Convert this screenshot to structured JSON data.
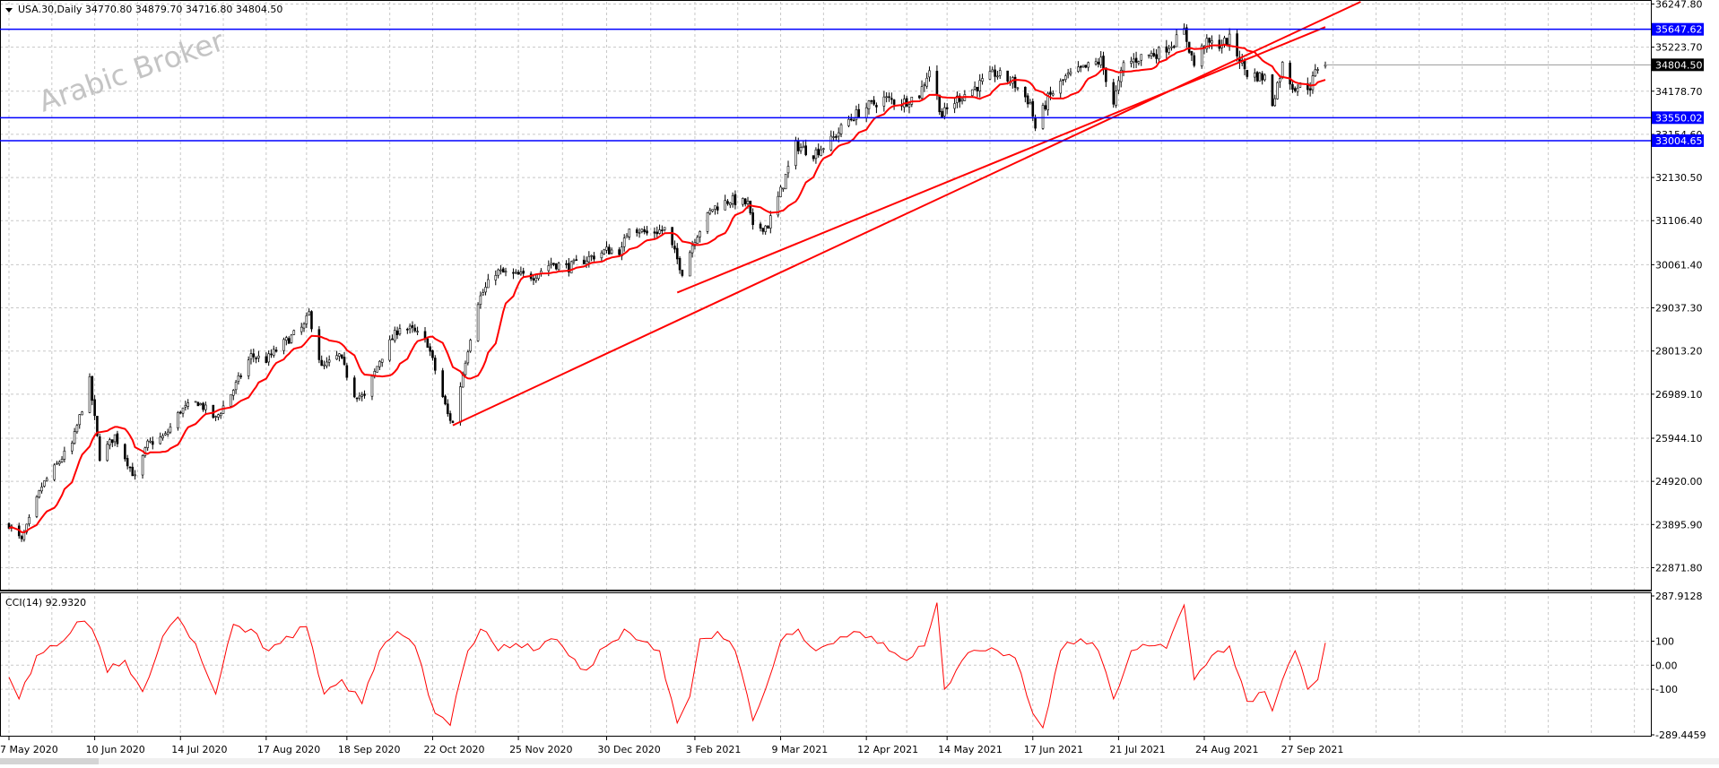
{
  "header": {
    "symbol_info": "USA.30,Daily  34770.80 34879.70 34716.80 34804.50",
    "watermark": "Arabic Broker"
  },
  "indicator": {
    "label": "CCI(14) 92.9320"
  },
  "colors": {
    "background": "#ffffff",
    "grid": "#c8c8c8",
    "candle": "#000000",
    "moving_average": "#ff0000",
    "trendline": "#ff0000",
    "horizontal_line": "#0000ff",
    "cci": "#ff0000",
    "price_tag": "#0000ff",
    "current_price_tag": "#000000"
  },
  "chart_data": [
    {
      "type": "candlestick",
      "symbol": "USA.30",
      "timeframe": "Daily",
      "ylim": [
        22350,
        36300
      ],
      "price_ticks": [
        "36247.80",
        "35223.70",
        "34178.70",
        "33154.60",
        "32130.50",
        "31106.40",
        "30061.40",
        "29037.30",
        "28013.20",
        "26989.10",
        "25944.10",
        "24920.00",
        "23895.90",
        "22871.80"
      ],
      "date_ticks": [
        "7 May 2020",
        "10 Jun 2020",
        "14 Jul 2020",
        "17 Aug 2020",
        "18 Sep 2020",
        "22 Oct 2020",
        "25 Nov 2020",
        "30 Dec 2020",
        "3 Feb 2021",
        "9 Mar 2021",
        "12 Apr 2021",
        "14 May 2021",
        "17 Jun 2021",
        "21 Jul 2021",
        "24 Aug 2021",
        "27 Sep 2021"
      ],
      "price_path": [
        [
          "7 May 2020",
          23900
        ],
        [
          "12 May 2020",
          23500
        ],
        [
          "20 May 2020",
          24800
        ],
        [
          "27 May 2020",
          25400
        ],
        [
          "1 Jun 2020",
          25800
        ],
        [
          "8 Jun 2020",
          27300
        ],
        [
          "12 Jun 2020",
          25500
        ],
        [
          "18 Jun 2020",
          26000
        ],
        [
          "26 Jun 2020",
          25000
        ],
        [
          "1 Jul 2020",
          25800
        ],
        [
          "8 Jul 2020",
          26000
        ],
        [
          "14 Jul 2020",
          26600
        ],
        [
          "21 Jul 2020",
          26800
        ],
        [
          "28 Jul 2020",
          26400
        ],
        [
          "4 Aug 2020",
          27100
        ],
        [
          "11 Aug 2020",
          27900
        ],
        [
          "17 Aug 2020",
          27800
        ],
        [
          "24 Aug 2020",
          28200
        ],
        [
          "1 Sep 2020",
          28600
        ],
        [
          "3 Sep 2020",
          28900
        ],
        [
          "8 Sep 2020",
          27600
        ],
        [
          "15 Sep 2020",
          27900
        ],
        [
          "21 Sep 2020",
          27000
        ],
        [
          "25 Sep 2020",
          26900
        ],
        [
          "1 Oct 2020",
          27800
        ],
        [
          "9 Oct 2020",
          28600
        ],
        [
          "14 Oct 2020",
          28500
        ],
        [
          "20 Oct 2020",
          28200
        ],
        [
          "28 Oct 2020",
          26500
        ],
        [
          "30 Oct 2020",
          26300
        ],
        [
          "4 Nov 2020",
          27800
        ],
        [
          "9 Nov 2020",
          29200
        ],
        [
          "16 Nov 2020",
          29900
        ],
        [
          "24 Nov 2020",
          29800
        ],
        [
          "1 Dec 2020",
          29800
        ],
        [
          "8 Dec 2020",
          30100
        ],
        [
          "15 Dec 2020",
          30000
        ],
        [
          "22 Dec 2020",
          30200
        ],
        [
          "30 Dec 2020",
          30400
        ],
        [
          "5 Jan 2021",
          30400
        ],
        [
          "8 Jan 2021",
          31000
        ],
        [
          "15 Jan 2021",
          30800
        ],
        [
          "22 Jan 2021",
          30900
        ],
        [
          "29 Jan 2021",
          29900
        ],
        [
          "3 Feb 2021",
          30700
        ],
        [
          "10 Feb 2021",
          31400
        ],
        [
          "17 Feb 2021",
          31600
        ],
        [
          "24 Feb 2021",
          31500
        ],
        [
          "26 Feb 2021",
          30900
        ],
        [
          "4 Mar 2021",
          31000
        ],
        [
          "9 Mar 2021",
          31800
        ],
        [
          "15 Mar 2021",
          32900
        ],
        [
          "22 Mar 2021",
          32700
        ],
        [
          "29 Mar 2021",
          33000
        ],
        [
          "5 Apr 2021",
          33500
        ],
        [
          "12 Apr 2021",
          33800
        ],
        [
          "19 Apr 2021",
          34000
        ],
        [
          "26 Apr 2021",
          33900
        ],
        [
          "3 May 2021",
          34100
        ],
        [
          "7 May 2021",
          34700
        ],
        [
          "12 May 2021",
          33600
        ],
        [
          "18 May 2021",
          34000
        ],
        [
          "26 May 2021",
          34300
        ],
        [
          "2 Jun 2021",
          34600
        ],
        [
          "9 Jun 2021",
          34400
        ],
        [
          "16 Jun 2021",
          33900
        ],
        [
          "18 Jun 2021",
          33300
        ],
        [
          "23 Jun 2021",
          34000
        ],
        [
          "30 Jun 2021",
          34500
        ],
        [
          "7 Jul 2021",
          34700
        ],
        [
          "14 Jul 2021",
          34900
        ],
        [
          "19 Jul 2021",
          33900
        ],
        [
          "23 Jul 2021",
          34800
        ],
        [
          "30 Jul 2021",
          35000
        ],
        [
          "6 Aug 2021",
          35100
        ],
        [
          "13 Aug 2021",
          35400
        ],
        [
          "16 Aug 2021",
          35600
        ],
        [
          "20 Aug 2021",
          34800
        ],
        [
          "24 Aug 2021",
          35300
        ],
        [
          "31 Aug 2021",
          35300
        ],
        [
          "3 Sep 2021",
          35400
        ],
        [
          "10 Sep 2021",
          34600
        ],
        [
          "17 Sep 2021",
          34500
        ],
        [
          "20 Sep 2021",
          33900
        ],
        [
          "24 Sep 2021",
          34800
        ],
        [
          "28 Sep 2021",
          34300
        ],
        [
          "1 Oct 2021",
          34300
        ],
        [
          "5 Oct 2021",
          34300
        ],
        [
          "8 Oct 2021",
          34750
        ],
        [
          "11 Oct 2021",
          34804.5
        ]
      ],
      "last_bar": {
        "open": 34770.8,
        "high": 34879.7,
        "low": 34716.8,
        "close": 34804.5
      },
      "horizontal_levels": [
        {
          "price": 35647.62,
          "label": "35647.62"
        },
        {
          "price": 33550.02,
          "label": "33550.02"
        },
        {
          "price": 33004.65,
          "label": "33004.65"
        }
      ],
      "current_price": {
        "price": 34804.5,
        "label": "34804.50"
      },
      "trendlines": [
        {
          "from": [
            "30 Oct 2020",
            26250
          ],
          "to": [
            "25 Oct 2021",
            36300
          ]
        },
        {
          "from": [
            "27 Jan 2021",
            29400
          ],
          "to": [
            "11 Oct 2021",
            35700
          ]
        }
      ],
      "grid": true
    },
    {
      "type": "line",
      "name": "CCI(14)",
      "last_value": 92.932,
      "ylim": [
        -289.4459,
        287.9128
      ],
      "y_ticks": [
        "287.9128",
        "100",
        "0.00",
        "-100",
        "-289.4459"
      ],
      "series": [
        {
          "name": "CCI(14)",
          "values": [
            [
              "7 May 2020",
              -50
            ],
            [
              "11 May 2020",
              -140
            ],
            [
              "18 May 2020",
              40
            ],
            [
              "26 May 2020",
              80
            ],
            [
              "3 Jun 2020",
              180
            ],
            [
              "9 Jun 2020",
              150
            ],
            [
              "15 Jun 2020",
              -30
            ],
            [
              "22 Jun 2020",
              20
            ],
            [
              "29 Jun 2020",
              -110
            ],
            [
              "7 Jul 2020",
              120
            ],
            [
              "13 Jul 2020",
              200
            ],
            [
              "20 Jul 2020",
              90
            ],
            [
              "28 Jul 2020",
              -120
            ],
            [
              "4 Aug 2020",
              170
            ],
            [
              "11 Aug 2020",
              150
            ],
            [
              "18 Aug 2020",
              60
            ],
            [
              "25 Aug 2020",
              120
            ],
            [
              "2 Sep 2020",
              160
            ],
            [
              "9 Sep 2020",
              -120
            ],
            [
              "16 Sep 2020",
              -60
            ],
            [
              "24 Sep 2020",
              -160
            ],
            [
              "1 Oct 2020",
              60
            ],
            [
              "8 Oct 2020",
              140
            ],
            [
              "15 Oct 2020",
              80
            ],
            [
              "23 Oct 2020",
              -200
            ],
            [
              "29 Oct 2020",
              -250
            ],
            [
              "5 Nov 2020",
              60
            ],
            [
              "10 Nov 2020",
              150
            ],
            [
              "17 Nov 2020",
              60
            ],
            [
              "24 Nov 2020",
              90
            ],
            [
              "1 Dec 2020",
              60
            ],
            [
              "8 Dec 2020",
              110
            ],
            [
              "15 Dec 2020",
              40
            ],
            [
              "22 Dec 2020",
              -20
            ],
            [
              "30 Dec 2020",
              80
            ],
            [
              "6 Jan 2021",
              150
            ],
            [
              "13 Jan 2021",
              100
            ],
            [
              "20 Jan 2021",
              60
            ],
            [
              "27 Jan 2021",
              -240
            ],
            [
              "1 Feb 2021",
              -130
            ],
            [
              "5 Feb 2021",
              110
            ],
            [
              "12 Feb 2021",
              140
            ],
            [
              "19 Feb 2021",
              60
            ],
            [
              "26 Feb 2021",
              -230
            ],
            [
              "3 Mar 2021",
              -100
            ],
            [
              "9 Mar 2021",
              100
            ],
            [
              "16 Mar 2021",
              150
            ],
            [
              "23 Mar 2021",
              60
            ],
            [
              "30 Mar 2021",
              90
            ],
            [
              "7 Apr 2021",
              140
            ],
            [
              "14 Apr 2021",
              120
            ],
            [
              "21 Apr 2021",
              60
            ],
            [
              "28 Apr 2021",
              20
            ],
            [
              "5 May 2021",
              80
            ],
            [
              "10 May 2021",
              260
            ],
            [
              "13 May 2021",
              -100
            ],
            [
              "20 May 2021",
              20
            ],
            [
              "27 May 2021",
              60
            ],
            [
              "3 Jun 2021",
              60
            ],
            [
              "10 Jun 2021",
              30
            ],
            [
              "17 Jun 2021",
              -200
            ],
            [
              "21 Jun 2021",
              -260
            ],
            [
              "28 Jun 2021",
              60
            ],
            [
              "6 Jul 2021",
              110
            ],
            [
              "13 Jul 2021",
              60
            ],
            [
              "19 Jul 2021",
              -140
            ],
            [
              "26 Jul 2021",
              60
            ],
            [
              "2 Aug 2021",
              80
            ],
            [
              "9 Aug 2021",
              70
            ],
            [
              "16 Aug 2021",
              250
            ],
            [
              "20 Aug 2021",
              -60
            ],
            [
              "27 Aug 2021",
              40
            ],
            [
              "3 Sep 2021",
              80
            ],
            [
              "10 Sep 2021",
              -150
            ],
            [
              "17 Sep 2021",
              -110
            ],
            [
              "20 Sep 2021",
              -190
            ],
            [
              "24 Sep 2021",
              -60
            ],
            [
              "29 Sep 2021",
              60
            ],
            [
              "4 Oct 2021",
              -100
            ],
            [
              "8 Oct 2021",
              -60
            ],
            [
              "11 Oct 2021",
              92.932
            ]
          ]
        }
      ],
      "grid": true
    }
  ]
}
